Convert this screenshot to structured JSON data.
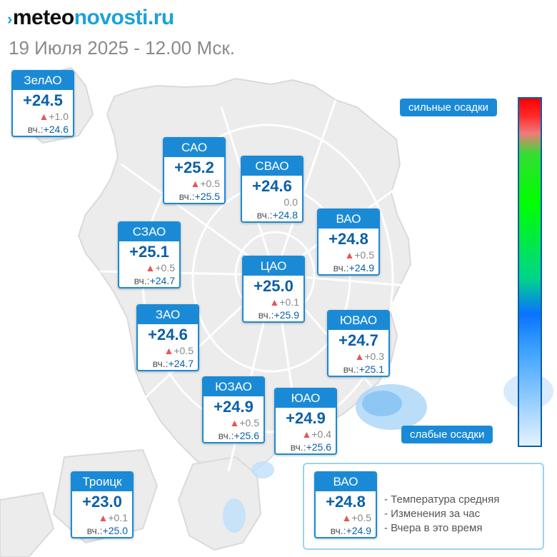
{
  "header": {
    "logo_part1": "meteo",
    "logo_part2": "novosti.ru",
    "date": "19 Июля 2025 - 12.00 Мск."
  },
  "colors": {
    "accent": "#1b8ad6",
    "temp_text": "#0a5fa8",
    "change_triangle": "#e85555",
    "logo_blue": "#1aa3d9"
  },
  "districts": [
    {
      "name": "ЗелАО",
      "temp": "+24.5",
      "change": "+1.0",
      "change_dir": "up",
      "yest_label": "вч.:",
      "yest": "+24.6"
    },
    {
      "name": "САО",
      "temp": "+25.2",
      "change": "+0.5",
      "change_dir": "up",
      "yest_label": "вч.:",
      "yest": "+25.5"
    },
    {
      "name": "СВАО",
      "temp": "+24.6",
      "change": "0.0",
      "change_dir": "none",
      "yest_label": "вч.:",
      "yest": "+24.8"
    },
    {
      "name": "ВАО",
      "temp": "+24.8",
      "change": "+0.5",
      "change_dir": "up",
      "yest_label": "вч.:",
      "yest": "+24.9"
    },
    {
      "name": "СЗАО",
      "temp": "+25.1",
      "change": "+0.5",
      "change_dir": "up",
      "yest_label": "вч.:",
      "yest": "+24.7"
    },
    {
      "name": "ЦАО",
      "temp": "+25.0",
      "change": "+0.1",
      "change_dir": "up",
      "yest_label": "вч.:",
      "yest": "+25.9"
    },
    {
      "name": "ЗАО",
      "temp": "+24.6",
      "change": "+0.5",
      "change_dir": "up",
      "yest_label": "вч.:",
      "yest": "+24.7"
    },
    {
      "name": "ЮВАО",
      "temp": "+24.7",
      "change": "+0.3",
      "change_dir": "up",
      "yest_label": "вч.:",
      "yest": "+25.1"
    },
    {
      "name": "ЮЗАО",
      "temp": "+24.9",
      "change": "+0.5",
      "change_dir": "up",
      "yest_label": "вч.:",
      "yest": "+25.6"
    },
    {
      "name": "ЮАО",
      "temp": "+24.9",
      "change": "+0.4",
      "change_dir": "up",
      "yest_label": "вч.:",
      "yest": "+25.6"
    },
    {
      "name": "Троицк",
      "temp": "+23.0",
      "change": "+0.1",
      "change_dir": "up",
      "yest_label": "вч.:",
      "yest": "+25.0"
    }
  ],
  "precip_scale": {
    "top_label": "сильные осадки",
    "bottom_label": "слабые осадки"
  },
  "legend": {
    "sample": {
      "name": "ВАО",
      "temp": "+24.8",
      "change": "+0.5",
      "yest_label": "вч.:",
      "yest": "+24.9"
    },
    "line1": "- Температура средняя",
    "line2": "- Изменения за час",
    "line3": "- Вчера в это время"
  }
}
